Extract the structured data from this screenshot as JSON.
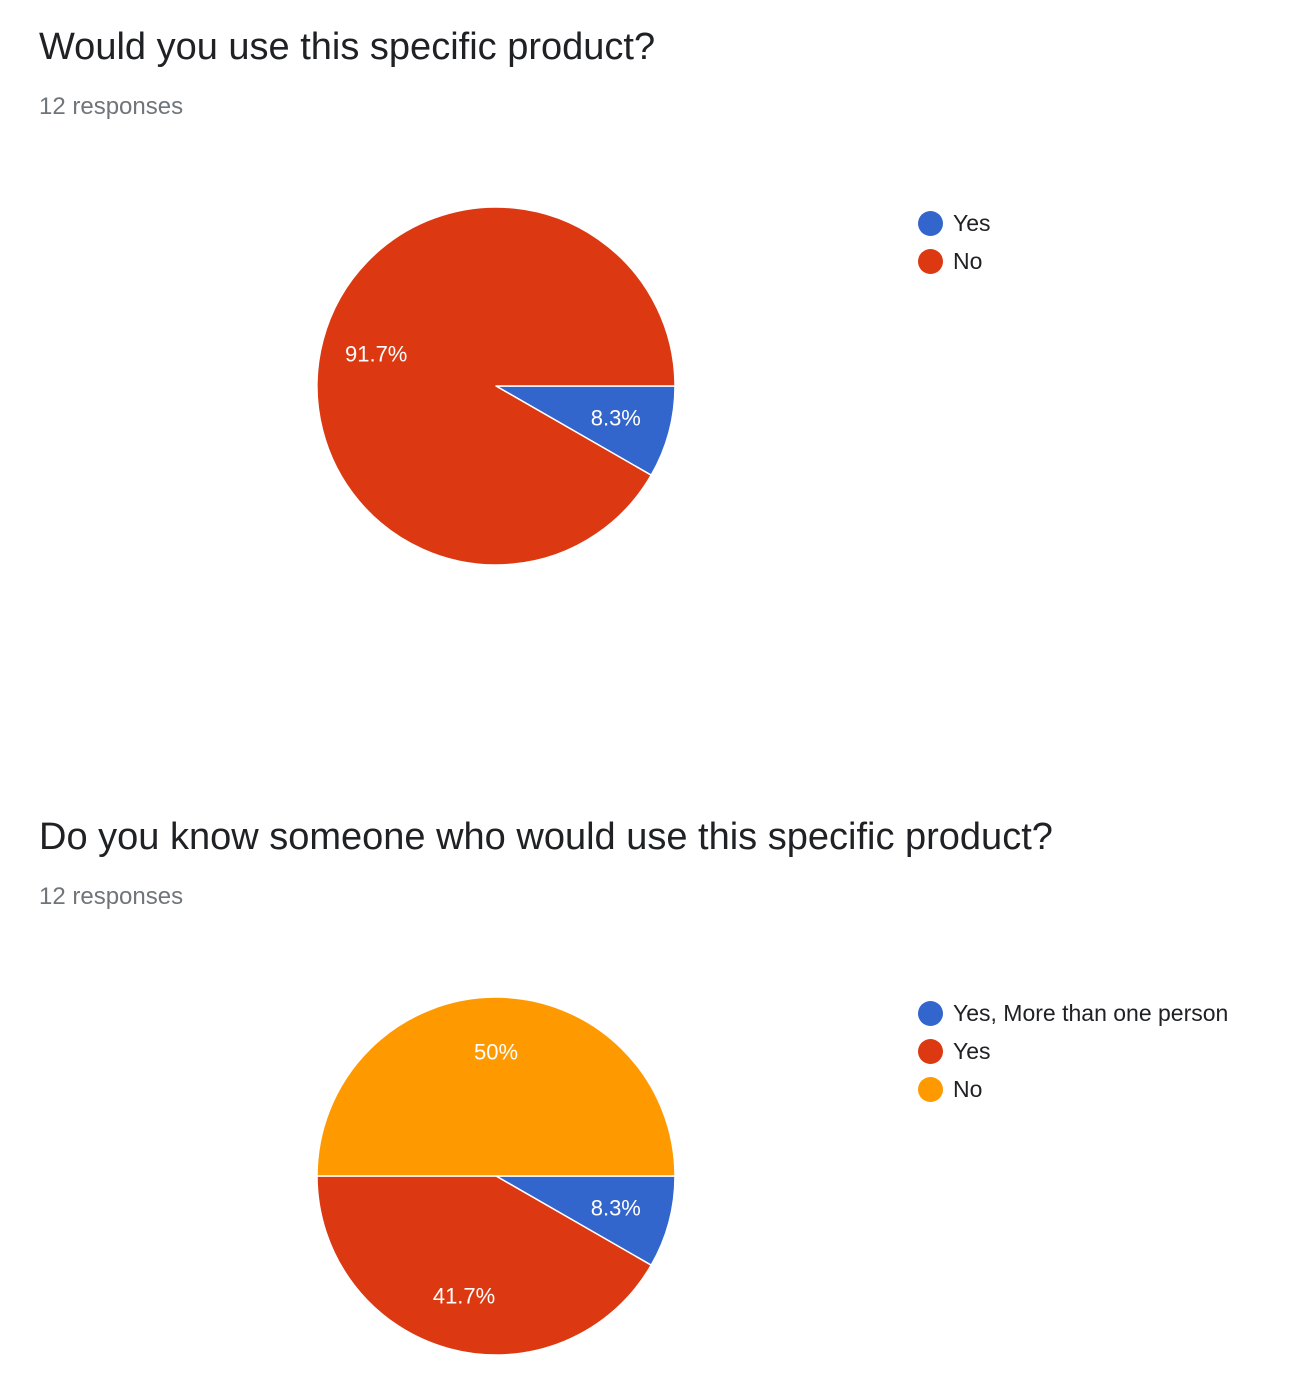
{
  "colors": {
    "blue": "#3366cc",
    "red": "#dc3912",
    "orange": "#ff9900"
  },
  "questions": [
    {
      "title": "Would you use this specific product?",
      "responses": "12 responses"
    },
    {
      "title": "Do you know someone who would use this specific product?",
      "responses": "12 responses"
    }
  ],
  "chart_data": [
    {
      "type": "pie",
      "title": "Would you use this specific product?",
      "categories": [
        "Yes",
        "No"
      ],
      "values": [
        8.3,
        91.7
      ],
      "labels": [
        "8.3%",
        "91.7%"
      ],
      "colors": [
        "#3366cc",
        "#dc3912"
      ],
      "legend": "right"
    },
    {
      "type": "pie",
      "title": "Do you know someone who would use this specific product?",
      "categories": [
        "Yes, More than one person",
        "Yes",
        "No"
      ],
      "values": [
        8.3,
        41.7,
        50
      ],
      "labels": [
        "8.3%",
        "41.7%",
        "50%"
      ],
      "colors": [
        "#3366cc",
        "#dc3912",
        "#ff9900"
      ],
      "legend": "right"
    }
  ]
}
